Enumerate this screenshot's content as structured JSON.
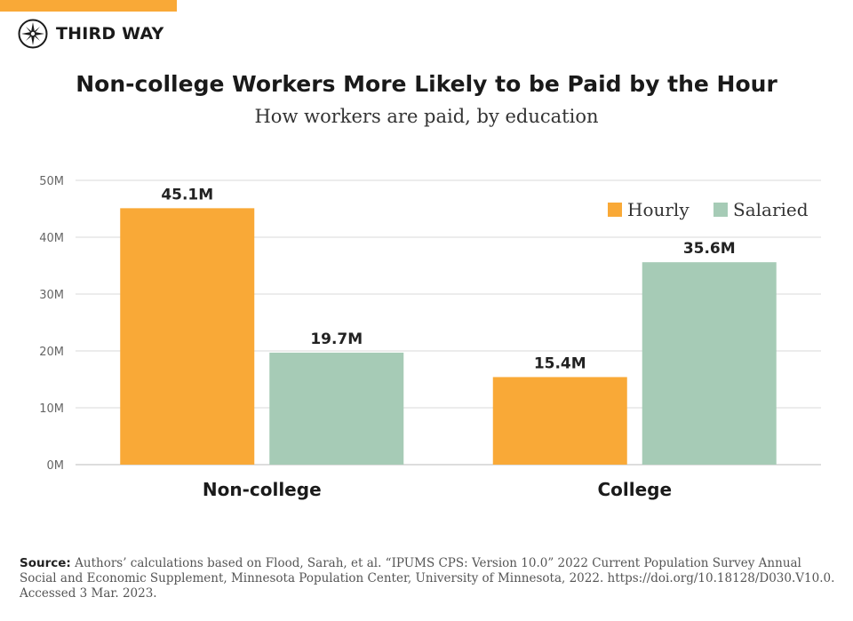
{
  "brand": {
    "name": "THIRD WAY",
    "logo_icon": "compass-star-icon",
    "accent_color": "#F9A937"
  },
  "chart_data": {
    "type": "bar",
    "title": "Non-college Workers More Likely to be Paid by the Hour",
    "subtitle": "How workers are paid, by education",
    "categories": [
      "Non-college",
      "College"
    ],
    "series": [
      {
        "name": "Hourly",
        "values": [
          45.1,
          15.4
        ],
        "labels": [
          "45.1M",
          "15.4M"
        ],
        "color": "#F9A937"
      },
      {
        "name": "Salaried",
        "values": [
          19.7,
          35.6
        ],
        "labels": [
          "19.7M",
          "35.6M"
        ],
        "color": "#A6CBB6"
      }
    ],
    "ylim": [
      0,
      50
    ],
    "yticks": [
      0,
      10,
      20,
      30,
      40,
      50
    ],
    "ytick_labels": [
      "0M",
      "10M",
      "20M",
      "30M",
      "40M",
      "50M"
    ],
    "xlabel": "",
    "ylabel": "",
    "grid": true,
    "legend_position": "top-right"
  },
  "source": {
    "label": "Source:",
    "text": "Authors’ calculations based on Flood, Sarah, et al. “IPUMS CPS: Version 10.0” 2022 Current Population Survey Annual Social and Economic Supplement, Minnesota Population Center, University of Minnesota, 2022. https://doi.org/10.18128/D030.V10.0. Accessed 3 Mar. 2023."
  }
}
